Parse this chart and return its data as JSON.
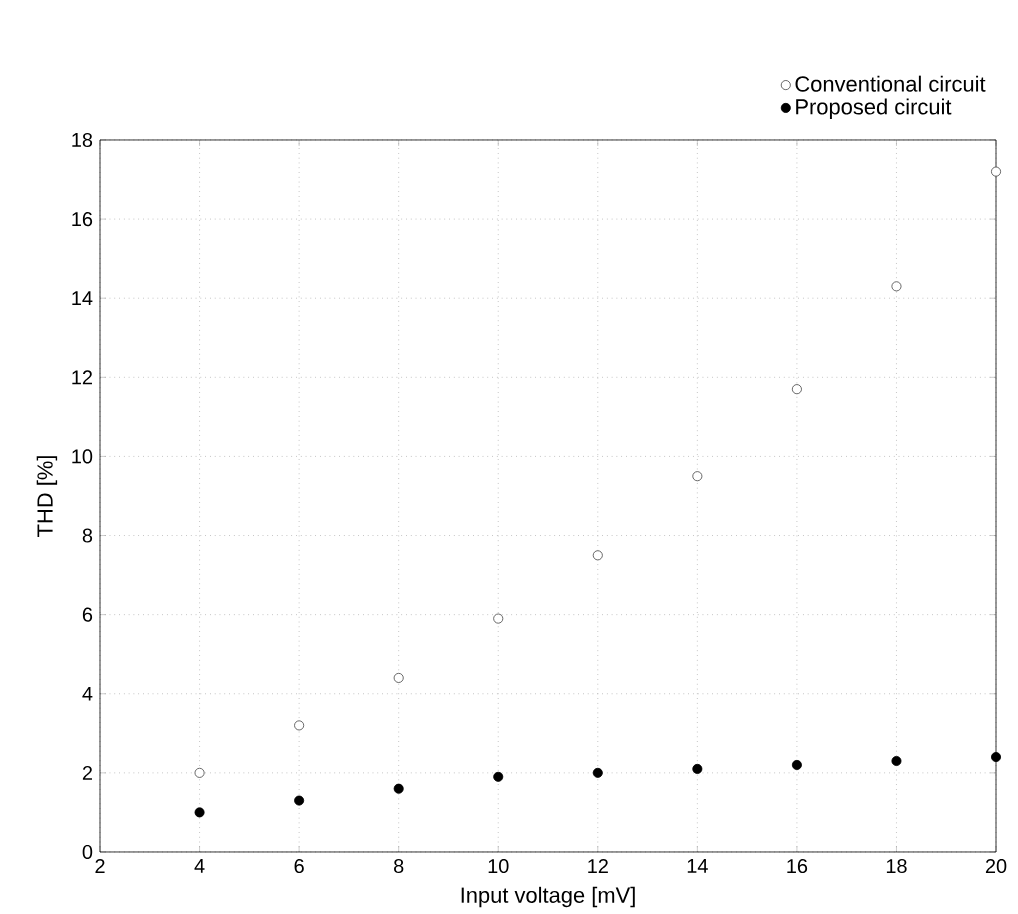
{
  "chart_data": {
    "type": "scatter",
    "xlabel": "Input voltage [mV]",
    "ylabel": "THD [%]",
    "x": [
      4,
      6,
      8,
      10,
      12,
      14,
      16,
      18,
      20
    ],
    "series": [
      {
        "name": "Conventional circuit",
        "color": "#444444",
        "values": [
          2.0,
          3.2,
          4.4,
          5.9,
          7.5,
          9.5,
          11.7,
          14.3,
          17.2
        ]
      },
      {
        "name": "Proposed circuit",
        "color": "#000000",
        "values": [
          1.0,
          1.3,
          1.6,
          1.9,
          2.0,
          2.1,
          2.2,
          2.3,
          2.4
        ]
      }
    ],
    "xlim": [
      2,
      20
    ],
    "ylim": [
      0,
      18
    ],
    "xticks": [
      2,
      4,
      6,
      8,
      10,
      12,
      14,
      16,
      18,
      20
    ],
    "yticks": [
      0,
      2,
      4,
      6,
      8,
      10,
      12,
      14,
      16,
      18
    ],
    "grid": true,
    "legend": "top right",
    "marker": "circle"
  }
}
